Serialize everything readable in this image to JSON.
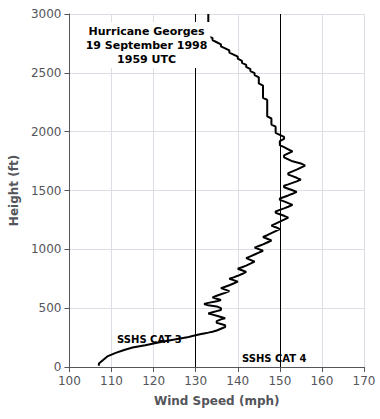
{
  "chart_data": {
    "type": "line",
    "title": "Hurricane Georges\n19 September 1998\n1959 UTC",
    "x_label": "Wind Speed (mph)",
    "y_label": "Height (ft)",
    "x": [
      107,
      107,
      108,
      109,
      111,
      113,
      115,
      118,
      120,
      122,
      124,
      126,
      128,
      129,
      130,
      131,
      132,
      133,
      134,
      135,
      136,
      137,
      137,
      136,
      135,
      135,
      136,
      137,
      136,
      135,
      134,
      133,
      134,
      135,
      136,
      136,
      135,
      133,
      132,
      133,
      135,
      136,
      135,
      134,
      135,
      136,
      137,
      138,
      137,
      136,
      137,
      138,
      139,
      140,
      139,
      138,
      139,
      140,
      141,
      142,
      141,
      140,
      141,
      142,
      143,
      144,
      143,
      142,
      143,
      144,
      145,
      146,
      145,
      144,
      145,
      146,
      147,
      148,
      147,
      146,
      147,
      148,
      149,
      150,
      149,
      148,
      149,
      150,
      151,
      152,
      151,
      150,
      149,
      149,
      150,
      151,
      152,
      153,
      152,
      151,
      150,
      150,
      151,
      152,
      153,
      154,
      153,
      152,
      151,
      151,
      152,
      153,
      154,
      155,
      154,
      153,
      152,
      152,
      153,
      154,
      155,
      156,
      155,
      153,
      152,
      151,
      151,
      152,
      153,
      152,
      151,
      150,
      150,
      150,
      151,
      151,
      150,
      149,
      149,
      149,
      149,
      148,
      148,
      148,
      148,
      147,
      147,
      147,
      147,
      147,
      147,
      147,
      147,
      147,
      146,
      146,
      146,
      146,
      146,
      146,
      146,
      145,
      145,
      145,
      145,
      144,
      144,
      143,
      143,
      142,
      142,
      141,
      141,
      140,
      140,
      139,
      138,
      138,
      137,
      136,
      136,
      135,
      134,
      134,
      133,
      133,
      133,
      133,
      133,
      133,
      133,
      133,
      133,
      133,
      133
    ],
    "values": [
      10,
      30,
      60,
      90,
      120,
      145,
      165,
      185,
      200,
      215,
      228,
      240,
      252,
      262,
      270,
      278,
      285,
      292,
      300,
      310,
      325,
      340,
      355,
      365,
      375,
      390,
      405,
      415,
      425,
      435,
      445,
      455,
      465,
      475,
      485,
      500,
      515,
      525,
      535,
      545,
      558,
      570,
      580,
      592,
      605,
      618,
      630,
      645,
      658,
      670,
      682,
      695,
      710,
      725,
      738,
      750,
      762,
      775,
      790,
      808,
      822,
      835,
      848,
      862,
      878,
      895,
      910,
      925,
      940,
      956,
      972,
      988,
      1002,
      1015,
      1028,
      1042,
      1058,
      1075,
      1090,
      1105,
      1120,
      1138,
      1155,
      1172,
      1188,
      1202,
      1218,
      1235,
      1252,
      1270,
      1285,
      1298,
      1310,
      1322,
      1335,
      1348,
      1362,
      1378,
      1393,
      1408,
      1420,
      1432,
      1445,
      1458,
      1472,
      1488,
      1502,
      1515,
      1528,
      1540,
      1552,
      1565,
      1578,
      1592,
      1608,
      1622,
      1635,
      1648,
      1662,
      1678,
      1695,
      1712,
      1730,
      1748,
      1765,
      1782,
      1798,
      1815,
      1832,
      1850,
      1868,
      1885,
      1902,
      1920,
      1938,
      1955,
      1972,
      1990,
      2008,
      2025,
      2042,
      2060,
      2078,
      2095,
      2112,
      2130,
      2148,
      2165,
      2182,
      2200,
      2218,
      2235,
      2252,
      2270,
      2288,
      2305,
      2322,
      2340,
      2358,
      2375,
      2392,
      2410,
      2428,
      2445,
      2462,
      2480,
      2498,
      2515,
      2532,
      2550,
      2568,
      2585,
      2602,
      2620,
      2638,
      2655,
      2672,
      2690,
      2708,
      2725,
      2742,
      2760,
      2778,
      2795,
      2812,
      2830,
      2848,
      2865,
      2882,
      2900,
      2920,
      2940,
      2960,
      2980,
      3000
    ],
    "color": "#000000",
    "xlim": [
      100,
      170
    ],
    "ylim": [
      0,
      3000
    ],
    "xticks": [
      100,
      110,
      120,
      130,
      140,
      150,
      160,
      170
    ],
    "yticks": [
      0,
      500,
      1000,
      1500,
      2000,
      2500,
      3000
    ],
    "vertical_lines": [
      130,
      150
    ],
    "annotations": [
      {
        "text": "SSHS CAT 3",
        "x": 119,
        "y": 230
      },
      {
        "text": "SSHS CAT 4",
        "x": 141,
        "y": 75
      }
    ],
    "grid": true
  }
}
